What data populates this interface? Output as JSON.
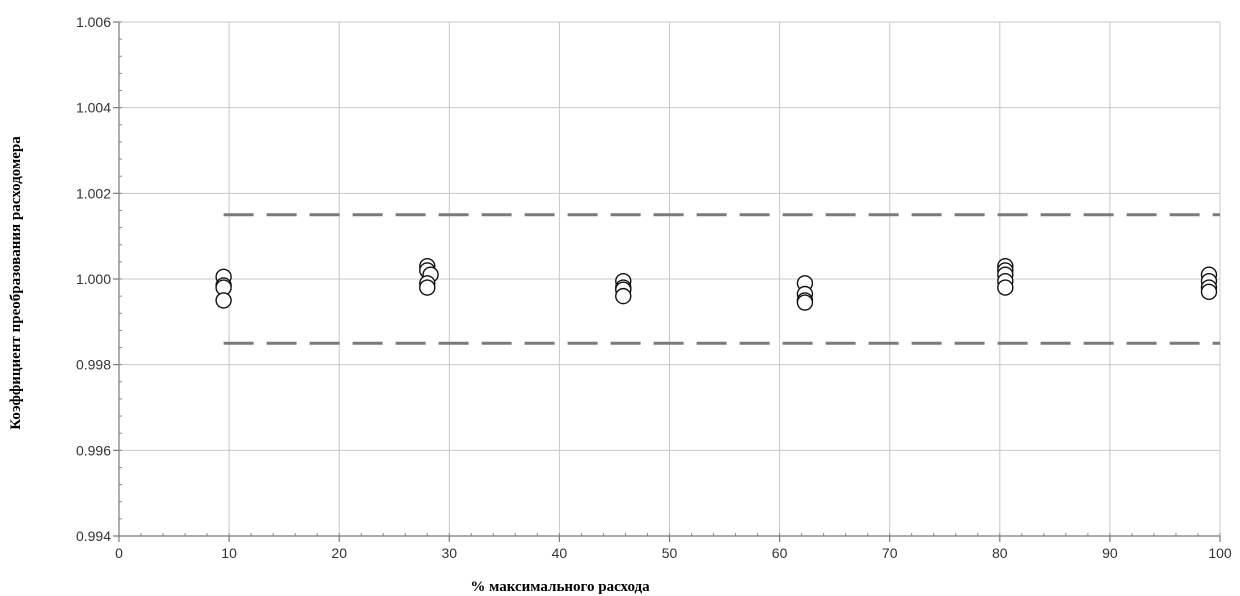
{
  "chart_data": {
    "type": "scatter",
    "title": "",
    "xlabel": "% максимального расхода",
    "ylabel": "Коэффициент  преобразования расходомера",
    "xlim": [
      0,
      100
    ],
    "ylim": [
      0.994,
      1.006
    ],
    "x_ticks": [
      0,
      10,
      20,
      30,
      40,
      50,
      60,
      70,
      80,
      90,
      100
    ],
    "x_tick_labels": [
      "0",
      "10",
      "20",
      "30",
      "40",
      "50",
      "60",
      "70",
      "80",
      "90",
      "100"
    ],
    "y_ticks": [
      0.994,
      0.996,
      0.998,
      1.0,
      1.002,
      1.004,
      1.006
    ],
    "y_tick_labels": [
      "0.994",
      "0.996",
      "0.998",
      "1.000",
      "1.002",
      "1.004",
      "1.006"
    ],
    "grid": true,
    "legend": "none",
    "series": [
      {
        "marker": "open-circle",
        "color": "#111111",
        "points": [
          [
            9.5,
            1.00005
          ],
          [
            9.5,
            0.99985
          ],
          [
            9.5,
            0.9998
          ],
          [
            9.5,
            0.9995
          ],
          [
            28.0,
            1.0003
          ],
          [
            28.0,
            1.0002
          ],
          [
            28.3,
            1.0001
          ],
          [
            28.0,
            0.9999
          ],
          [
            28.0,
            0.9998
          ],
          [
            45.8,
            0.99995
          ],
          [
            45.8,
            0.9998
          ],
          [
            45.8,
            0.99975
          ],
          [
            45.8,
            0.9996
          ],
          [
            62.3,
            0.9999
          ],
          [
            62.3,
            0.99965
          ],
          [
            62.3,
            0.9995
          ],
          [
            62.3,
            0.99945
          ],
          [
            80.5,
            1.0003
          ],
          [
            80.5,
            1.0002
          ],
          [
            80.5,
            1.0001
          ],
          [
            80.5,
            0.99995
          ],
          [
            80.5,
            0.9998
          ],
          [
            99.0,
            1.0001
          ],
          [
            99.0,
            0.99995
          ],
          [
            99.0,
            0.9998
          ],
          [
            99.0,
            0.9997
          ]
        ]
      }
    ],
    "limit_lines": [
      {
        "style": "dashed",
        "color": "#7a7a7a",
        "x": [
          9.5,
          100
        ],
        "y": 1.0015
      },
      {
        "style": "dashed",
        "color": "#7a7a7a",
        "x": [
          9.5,
          100
        ],
        "y": 0.9985
      }
    ]
  }
}
